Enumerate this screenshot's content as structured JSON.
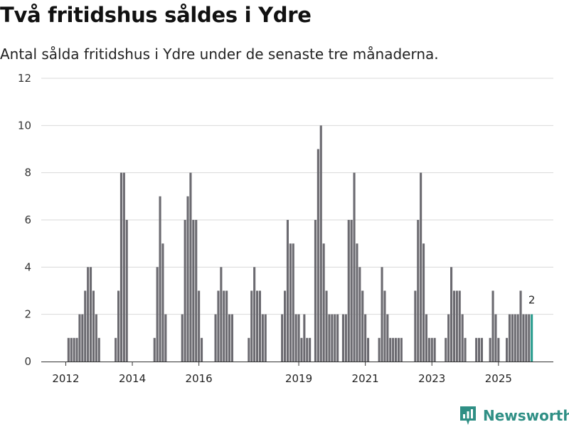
{
  "title": "Två fritidshus såldes i Ydre",
  "subtitle": "Antal sålda fritidshus i Ydre under de senaste tre månaderna.",
  "brand": {
    "name": "Newsworthy",
    "icon": "newsworthy-logo-icon"
  },
  "colors": {
    "bar": "#6b6a70",
    "highlight": "#2a9d8f",
    "grid": "#d9d9d9",
    "brand": "#2f8f85"
  },
  "chart_data": {
    "type": "bar",
    "title": "Två fritidshus såldes i Ydre",
    "subtitle": "Antal sålda fritidshus i Ydre under de senaste tre månaderna.",
    "xlabel": "",
    "ylabel": "",
    "ylim": [
      0,
      12
    ],
    "yticks": [
      "0",
      "2",
      "4",
      "6",
      "8",
      "10",
      "12"
    ],
    "xticks": [
      {
        "label": "2012",
        "month_index": 11
      },
      {
        "label": "2014",
        "month_index": 35
      },
      {
        "label": "2016",
        "month_index": 59
      },
      {
        "label": "2019",
        "month_index": 95
      },
      {
        "label": "2021",
        "month_index": 119
      },
      {
        "label": "2023",
        "month_index": 143
      },
      {
        "label": "2025",
        "month_index": 167
      }
    ],
    "start_month": "2011-01",
    "series": [
      {
        "name": "Antal sålda fritidshus (rullande tre månader)",
        "values": [
          0,
          0,
          0,
          0,
          0,
          0,
          0,
          0,
          0,
          0,
          0,
          0,
          1,
          1,
          1,
          1,
          2,
          2,
          3,
          4,
          4,
          3,
          2,
          1,
          0,
          0,
          0,
          0,
          0,
          1,
          3,
          8,
          8,
          6,
          0,
          0,
          0,
          0,
          0,
          0,
          0,
          0,
          0,
          1,
          4,
          7,
          5,
          2,
          0,
          0,
          0,
          0,
          0,
          2,
          6,
          7,
          8,
          6,
          6,
          3,
          1,
          0,
          0,
          0,
          0,
          2,
          3,
          4,
          3,
          3,
          2,
          2,
          0,
          0,
          0,
          0,
          0,
          1,
          3,
          4,
          3,
          3,
          2,
          2,
          0,
          0,
          0,
          0,
          0,
          2,
          3,
          6,
          5,
          5,
          2,
          2,
          1,
          2,
          1,
          1,
          0,
          6,
          9,
          10,
          5,
          3,
          2,
          2,
          2,
          2,
          0,
          2,
          2,
          6,
          6,
          8,
          5,
          4,
          3,
          2,
          1,
          0,
          0,
          0,
          1,
          4,
          3,
          2,
          1,
          1,
          1,
          1,
          1,
          0,
          0,
          0,
          0,
          3,
          6,
          8,
          5,
          2,
          1,
          1,
          1,
          0,
          0,
          0,
          1,
          2,
          4,
          3,
          3,
          3,
          2,
          1,
          0,
          0,
          0,
          1,
          1,
          1,
          0,
          0,
          1,
          3,
          2,
          1,
          0,
          0,
          1,
          2,
          2,
          2,
          2,
          3,
          2,
          2,
          2,
          2
        ],
        "data_labels": [
          {
            "month_index": 179,
            "text": "2"
          }
        ]
      }
    ]
  }
}
